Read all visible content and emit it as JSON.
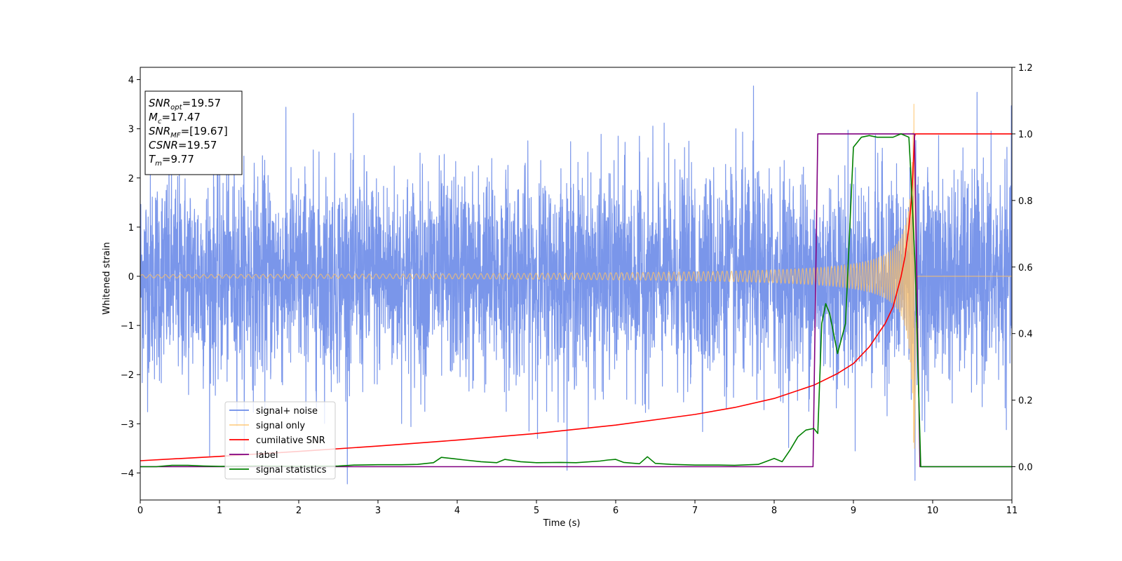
{
  "chart_data": {
    "type": "line",
    "title": "",
    "xlabel": "Time (s)",
    "ylabel": "Whitened strain",
    "xlim": [
      0,
      11
    ],
    "ylim": [
      -4.55,
      4.25
    ],
    "y2lim": [
      -0.1,
      1.2
    ],
    "xticks": [
      0,
      1,
      2,
      3,
      4,
      5,
      6,
      7,
      8,
      9,
      10,
      11
    ],
    "yticks": [
      -4,
      -3,
      -2,
      -1,
      0,
      1,
      2,
      3,
      4
    ],
    "y2ticks": [
      "0.0",
      "0.2",
      "0.4",
      "0.6",
      "0.8",
      "1.0",
      "1.2"
    ],
    "legend_location": "lower-left",
    "grid": false,
    "annotation": {
      "lines": [
        {
          "sym": "SNR",
          "sub": "opt",
          "value": "=19.57"
        },
        {
          "sym": "M",
          "sub": "c",
          "value": "=17.47"
        },
        {
          "sym": "SNR",
          "sub": "MF",
          "value": "=[19.67]"
        },
        {
          "sym": "CSNR",
          "sub": "",
          "value": "=19.57"
        },
        {
          "sym": "T",
          "sub": "m",
          "value": "=9.77"
        }
      ]
    },
    "series": [
      {
        "name": "signal+ noise",
        "color": "#6b8be8",
        "axis": "left",
        "kind": "noise",
        "amplitude_std": 1.05,
        "peak_values": [
          3.87,
          -4.15
        ]
      },
      {
        "name": "signal only",
        "color": "#ffc266",
        "axis": "left",
        "kind": "chirp",
        "merger_time": 9.77,
        "ringdown_end": 9.8,
        "peak_amplitude": 3.5
      },
      {
        "name": "cumilative SNR",
        "color": "#ff0000",
        "axis": "right",
        "x": [
          0,
          1,
          2,
          3,
          4,
          5,
          6,
          7,
          7.5,
          8,
          8.5,
          8.8,
          9.0,
          9.2,
          9.4,
          9.5,
          9.6,
          9.65,
          9.7,
          9.73,
          9.75,
          9.77,
          9.78,
          11
        ],
        "values": [
          0.018,
          0.031,
          0.046,
          0.062,
          0.08,
          0.1,
          0.125,
          0.157,
          0.178,
          0.205,
          0.245,
          0.28,
          0.31,
          0.36,
          0.43,
          0.48,
          0.57,
          0.63,
          0.72,
          0.8,
          0.88,
          0.99,
          1.0,
          1.0
        ]
      },
      {
        "name": "label",
        "color": "#800080",
        "axis": "right",
        "x": [
          0,
          8.49,
          8.55,
          9.77,
          9.84,
          11
        ],
        "values": [
          0.0,
          0.0,
          1.0,
          1.0,
          0.0,
          0.0
        ]
      },
      {
        "name": "signal statistics",
        "color": "#008000",
        "axis": "right",
        "x": [
          0,
          0.2,
          0.4,
          0.6,
          0.8,
          1.0,
          1.5,
          2.0,
          2.5,
          2.7,
          3.0,
          3.3,
          3.5,
          3.7,
          3.8,
          3.95,
          4.1,
          4.3,
          4.5,
          4.6,
          4.8,
          5.0,
          5.3,
          5.5,
          5.8,
          5.9,
          6.0,
          6.1,
          6.3,
          6.4,
          6.5,
          6.7,
          7.0,
          7.3,
          7.5,
          7.8,
          8.0,
          8.1,
          8.2,
          8.3,
          8.4,
          8.5,
          8.55,
          8.6,
          8.65,
          8.7,
          8.8,
          8.9,
          9.0,
          9.1,
          9.2,
          9.3,
          9.5,
          9.6,
          9.7,
          9.72,
          9.78,
          9.85,
          10.0,
          11.0
        ],
        "values": [
          0.0,
          0.0,
          0.004,
          0.004,
          0.002,
          0.001,
          0.002,
          0.001,
          0.002,
          0.005,
          0.006,
          0.006,
          0.007,
          0.012,
          0.028,
          0.024,
          0.02,
          0.015,
          0.012,
          0.022,
          0.015,
          0.012,
          0.013,
          0.012,
          0.017,
          0.02,
          0.022,
          0.013,
          0.009,
          0.03,
          0.01,
          0.007,
          0.005,
          0.005,
          0.004,
          0.007,
          0.025,
          0.015,
          0.05,
          0.09,
          0.11,
          0.115,
          0.1,
          0.43,
          0.49,
          0.46,
          0.34,
          0.43,
          0.96,
          0.99,
          0.995,
          0.99,
          0.99,
          1.0,
          0.99,
          0.9,
          0.6,
          0.0,
          0.0,
          0.0
        ]
      }
    ]
  }
}
